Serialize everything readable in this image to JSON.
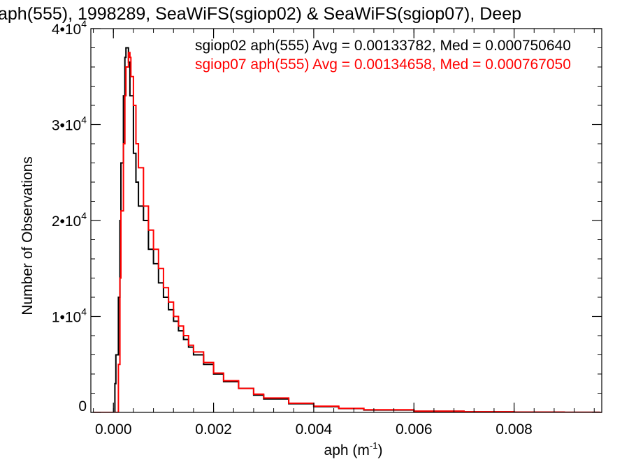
{
  "chart_data": {
    "type": "line",
    "title": "aph(555), 1998289, SeaWiFS(sgiop02) & SeaWiFS(sgiop07), Deep",
    "xlabel": "aph (m",
    "xlabel_sup": "-1",
    "xlabel_suffix": ")",
    "ylabel": "Number of Observations",
    "xlim": [
      -0.00045,
      0.00975
    ],
    "ylim": [
      0,
      40000
    ],
    "x_ticks": [
      {
        "value": 0.0,
        "label": "0.000"
      },
      {
        "value": 0.002,
        "label": "0.002"
      },
      {
        "value": 0.004,
        "label": "0.004"
      },
      {
        "value": 0.006,
        "label": "0.006"
      },
      {
        "value": 0.008,
        "label": "0.008"
      }
    ],
    "y_ticks": [
      {
        "value": 0,
        "label": "0",
        "sup": ""
      },
      {
        "value": 10000,
        "label": "1•10",
        "sup": "4"
      },
      {
        "value": 20000,
        "label": "2•10",
        "sup": "4"
      },
      {
        "value": 30000,
        "label": "3•10",
        "sup": "4"
      },
      {
        "value": 40000,
        "label": "4•10",
        "sup": "4"
      }
    ],
    "annotations": [
      {
        "text": "sgiop02 aph(555) Avg = 0.00133782, Med = 0.000750640",
        "color": "#000000"
      },
      {
        "text": "sgiop07 aph(555) Avg = 0.00134658, Med = 0.000767050",
        "color": "#ff0000"
      }
    ],
    "series": [
      {
        "name": "sgiop02",
        "color": "#000000",
        "x": [
          -0.0004,
          0.0,
          3e-05,
          5e-05,
          0.0001,
          0.00013,
          0.00015,
          0.0002,
          0.00023,
          0.00025,
          0.0003,
          0.00033,
          0.0004,
          0.00045,
          0.0005,
          0.0006,
          0.0007,
          0.0008,
          0.0009,
          0.001,
          0.0011,
          0.0012,
          0.0013,
          0.0014,
          0.0015,
          0.0016,
          0.0018,
          0.002,
          0.0022,
          0.0025,
          0.0028,
          0.003,
          0.0035,
          0.004,
          0.0045,
          0.005,
          0.006,
          0.007,
          0.008,
          0.009,
          0.0097
        ],
        "y": [
          0,
          0,
          3000,
          6000,
          12000,
          20000,
          26000,
          33000,
          37000,
          38000,
          36500,
          33000,
          27000,
          24000,
          21500,
          20000,
          17000,
          15500,
          13500,
          12000,
          10700,
          9500,
          8500,
          7600,
          6800,
          6000,
          5000,
          4000,
          3200,
          2500,
          1800,
          1400,
          900,
          600,
          400,
          250,
          120,
          60,
          30,
          10,
          0
        ]
      },
      {
        "name": "sgiop07",
        "color": "#ff0000",
        "x": [
          -0.0004,
          8e-05,
          0.0001,
          0.00013,
          0.00015,
          0.0002,
          0.00023,
          0.00025,
          0.0003,
          0.00033,
          0.00035,
          0.0004,
          0.00045,
          0.0005,
          0.0006,
          0.0007,
          0.0008,
          0.0009,
          0.001,
          0.0011,
          0.0012,
          0.0013,
          0.0014,
          0.0015,
          0.0016,
          0.0018,
          0.002,
          0.0022,
          0.0025,
          0.0028,
          0.003,
          0.0035,
          0.004,
          0.0045,
          0.005,
          0.006,
          0.007,
          0.008,
          0.009,
          0.0097
        ],
        "y": [
          0,
          0,
          5000,
          14000,
          21000,
          28000,
          33000,
          36000,
          37500,
          37000,
          35000,
          32000,
          28000,
          25500,
          21500,
          19000,
          17000,
          15000,
          13000,
          11500,
          10000,
          9000,
          8000,
          7000,
          6300,
          5200,
          4100,
          3300,
          2500,
          1900,
          1500,
          950,
          650,
          420,
          270,
          130,
          65,
          30,
          10,
          0
        ]
      }
    ]
  }
}
